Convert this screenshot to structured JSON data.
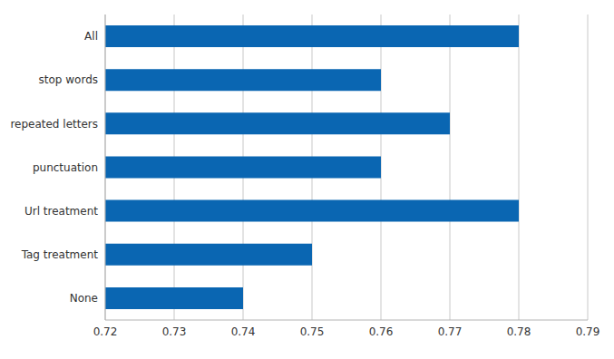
{
  "chart_data": {
    "type": "bar",
    "orientation": "horizontal",
    "categories": [
      "All",
      "stop words",
      "repeated letters",
      "punctuation",
      "Url treatment",
      "Tag treatment",
      "None"
    ],
    "values": [
      0.78,
      0.76,
      0.77,
      0.76,
      0.78,
      0.75,
      0.74
    ],
    "color": "#0a66b2",
    "xlim": [
      0.72,
      0.79
    ],
    "xticks": [
      0.72,
      0.73,
      0.74,
      0.75,
      0.76,
      0.77,
      0.78,
      0.79
    ],
    "grid": true
  }
}
